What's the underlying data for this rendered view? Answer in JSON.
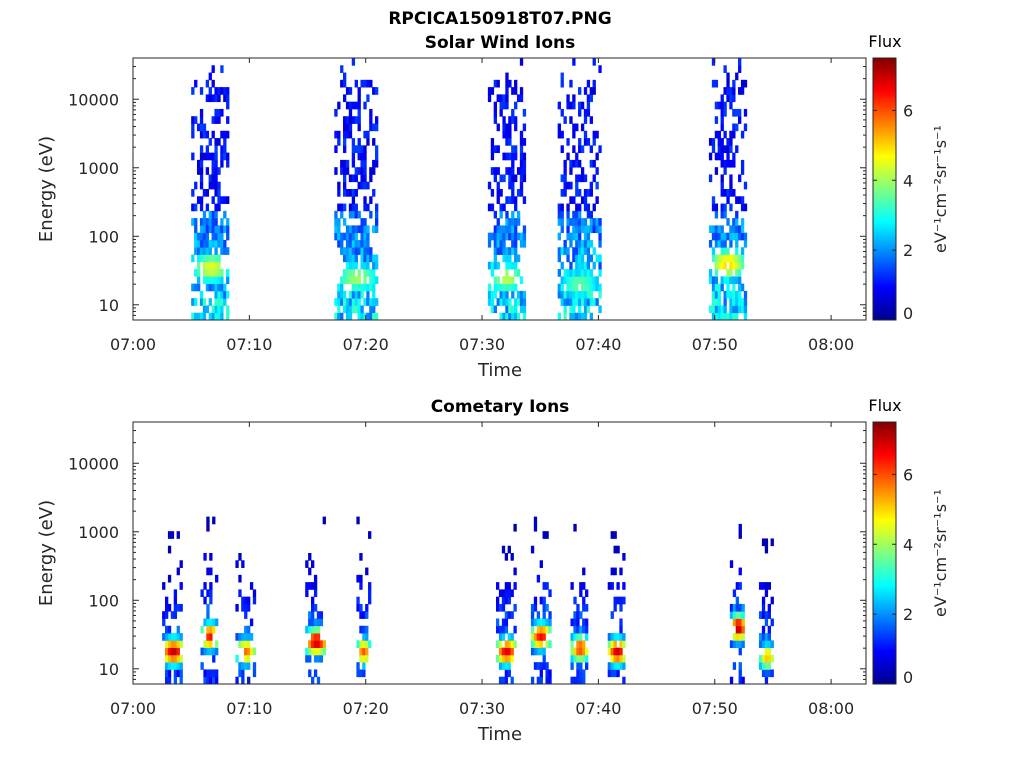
{
  "figure": {
    "title": "RPCICA150918T07.PNG"
  },
  "chart_data": [
    {
      "type": "heatmap",
      "title": "Solar Wind Ions",
      "xlabel": "Time",
      "ylabel": "Energy (eV)",
      "x_ticks": [
        "07:00",
        "07:10",
        "07:20",
        "07:30",
        "07:40",
        "07:50",
        "08:00"
      ],
      "xlim_minutes": [
        0,
        63
      ],
      "y_scale": "log",
      "y_ticks": [
        "10",
        "100",
        "1000",
        "10000"
      ],
      "ylim": [
        6,
        40000
      ],
      "colorbar": {
        "label": "Flux",
        "units": "eV⁻¹cm⁻²sr⁻¹s⁻¹",
        "ticks": [
          "0",
          "2",
          "4",
          "6"
        ],
        "range": [
          0,
          7.5
        ],
        "colormap": "jet"
      },
      "bursts": [
        {
          "t_start_min": 5,
          "t_end_min": 8.2,
          "peak_energy_ev": 35,
          "peak_flux": 4.5
        },
        {
          "t_start_min": 17.3,
          "t_end_min": 21,
          "peak_energy_ev": 25,
          "peak_flux": 4.0
        },
        {
          "t_start_min": 30.5,
          "t_end_min": 33.5,
          "peak_energy_ev": 25,
          "peak_flux": 4.2
        },
        {
          "t_start_min": 36.5,
          "t_end_min": 40,
          "peak_energy_ev": 20,
          "peak_flux": 3.6
        },
        {
          "t_start_min": 49.5,
          "t_end_min": 52.5,
          "peak_energy_ev": 40,
          "peak_flux": 5.0
        }
      ]
    },
    {
      "type": "heatmap",
      "title": "Cometary Ions",
      "xlabel": "Time",
      "ylabel": "Energy (eV)",
      "x_ticks": [
        "07:00",
        "07:10",
        "07:20",
        "07:30",
        "07:40",
        "07:50",
        "08:00"
      ],
      "xlim_minutes": [
        0,
        63
      ],
      "y_scale": "log",
      "y_ticks": [
        "10",
        "100",
        "1000",
        "10000"
      ],
      "ylim": [
        6,
        40000
      ],
      "colorbar": {
        "label": "Flux",
        "units": "eV⁻¹cm⁻²sr⁻¹s⁻¹",
        "ticks": [
          "0",
          "2",
          "4",
          "6"
        ],
        "range": [
          0,
          7.5
        ],
        "colormap": "jet"
      },
      "bursts": [
        {
          "t_start_min": 2.5,
          "t_end_min": 4.2,
          "peak_energy_ev": 18,
          "peak_flux": 7.0
        },
        {
          "t_start_min": 5.8,
          "t_end_min": 7.2,
          "peak_energy_ev": 30,
          "peak_flux": 6.5
        },
        {
          "t_start_min": 8.8,
          "t_end_min": 10.3,
          "peak_energy_ev": 18,
          "peak_flux": 5.8
        },
        {
          "t_start_min": 14.8,
          "t_end_min": 16.5,
          "peak_energy_ev": 25,
          "peak_flux": 7.0
        },
        {
          "t_start_min": 19.2,
          "t_end_min": 20.2,
          "peak_energy_ev": 18,
          "peak_flux": 6.0
        },
        {
          "t_start_min": 31.2,
          "t_end_min": 32.8,
          "peak_energy_ev": 18,
          "peak_flux": 6.8
        },
        {
          "t_start_min": 34.2,
          "t_end_min": 35.7,
          "peak_energy_ev": 30,
          "peak_flux": 6.6
        },
        {
          "t_start_min": 37.6,
          "t_end_min": 39,
          "peak_energy_ev": 20,
          "peak_flux": 6.2
        },
        {
          "t_start_min": 40.8,
          "t_end_min": 42.2,
          "peak_energy_ev": 18,
          "peak_flux": 7.0
        },
        {
          "t_start_min": 51.3,
          "t_end_min": 52.5,
          "peak_energy_ev": 40,
          "peak_flux": 7.2
        },
        {
          "t_start_min": 53.8,
          "t_end_min": 55,
          "peak_energy_ev": 15,
          "peak_flux": 5.2
        }
      ]
    }
  ]
}
